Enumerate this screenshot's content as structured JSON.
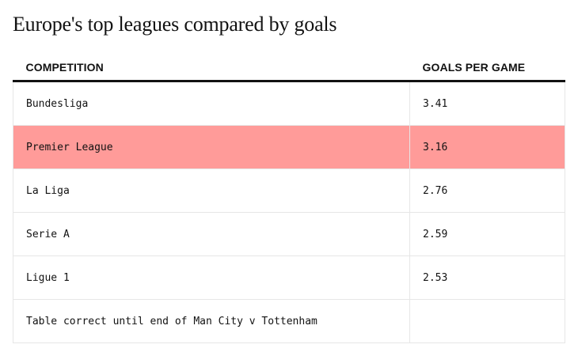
{
  "title": "Europe's top leagues compared by goals",
  "columns": {
    "competition": "COMPETITION",
    "goals_per_game": "GOALS PER GAME"
  },
  "rows": [
    {
      "competition": "Bundesliga",
      "goals_per_game": "3.41",
      "highlighted": false
    },
    {
      "competition": "Premier League",
      "goals_per_game": "3.16",
      "highlighted": true
    },
    {
      "competition": "La Liga",
      "goals_per_game": "2.76",
      "highlighted": false
    },
    {
      "competition": "Serie A",
      "goals_per_game": "2.59",
      "highlighted": false
    },
    {
      "competition": "Ligue 1",
      "goals_per_game": "2.53",
      "highlighted": false
    }
  ],
  "footnote": "Table correct until end of Man City v Tottenham",
  "colors": {
    "highlight": "#ff9b99",
    "text": "#121212",
    "row_border": "#e6e6e6"
  }
}
